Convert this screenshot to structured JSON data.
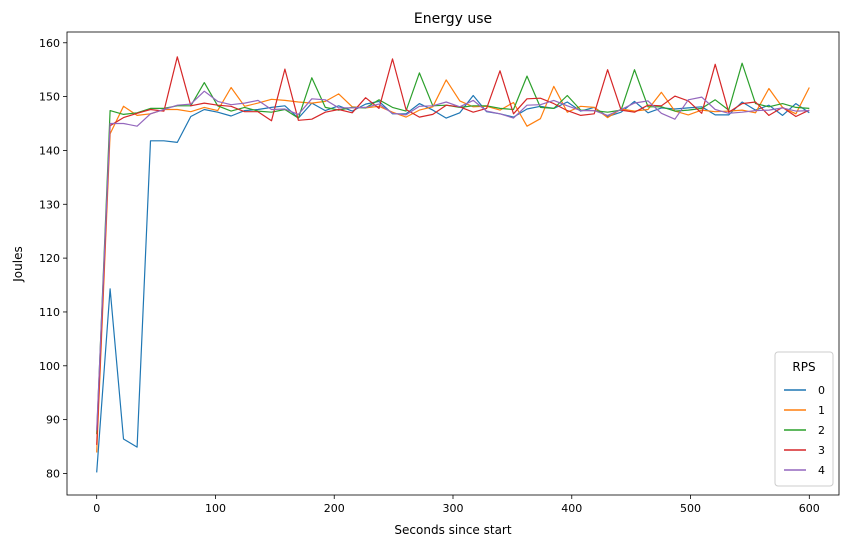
{
  "chart_data": {
    "type": "line",
    "title": "Energy use",
    "xlabel": "Seconds since start",
    "ylabel": "Joules",
    "xlim": [
      -25,
      625
    ],
    "ylim": [
      76,
      162
    ],
    "xticks": [
      0,
      100,
      200,
      300,
      400,
      500,
      600
    ],
    "yticks": [
      80,
      90,
      100,
      110,
      120,
      130,
      140,
      150,
      160
    ],
    "grid": false,
    "legend": {
      "title": "RPS",
      "placement": "lower-right"
    },
    "x": [
      0,
      11.3,
      22.6,
      34,
      45.3,
      56.6,
      67.9,
      79.2,
      90.6,
      101.9,
      113.2,
      124.5,
      135.8,
      147.2,
      158.5,
      169.8,
      181.1,
      192.5,
      203.8,
      215.1,
      226.4,
      237.7,
      249.1,
      260.4,
      271.7,
      283,
      294.3,
      305.7,
      317,
      328.3,
      339.6,
      350.9,
      362.3,
      373.6,
      384.9,
      396.2,
      407.5,
      418.9,
      430.2,
      441.5,
      452.8,
      464.2,
      475.5,
      486.8,
      498.1,
      509.4,
      520.8,
      532.1,
      543.4,
      554.7,
      566,
      577.4,
      588.7,
      600
    ],
    "series": [
      {
        "name": "0",
        "color": "#1f77b4",
        "values": [
          80.2,
          114.3,
          86.4,
          84.9,
          141.8,
          141.8,
          141.5,
          146.3,
          147.6,
          147.1,
          146.4,
          147.4,
          147.6,
          148.0,
          148.3,
          146.0,
          148.8,
          147.4,
          148.3,
          147.3,
          148.6,
          149.1,
          146.8,
          146.8,
          148.7,
          147.5,
          146.0,
          147.0,
          150.2,
          147.2,
          146.8,
          146.2,
          147.7,
          148.2,
          147.8,
          149.0,
          147.3,
          148.0,
          146.3,
          147.1,
          149.1,
          147.0,
          147.9,
          147.7,
          147.9,
          148.1,
          146.6,
          146.6,
          149.0,
          147.5,
          148.4,
          146.5,
          148.7,
          147.0
        ]
      },
      {
        "name": "1",
        "color": "#ff7f0e",
        "values": [
          83.9,
          143.1,
          148.2,
          146.5,
          146.8,
          147.6,
          147.6,
          147.2,
          148.0,
          147.4,
          151.7,
          148.2,
          148.8,
          149.5,
          149.3,
          149.0,
          148.8,
          149.1,
          150.5,
          148.1,
          147.9,
          148.2,
          147.1,
          146.2,
          147.5,
          148.1,
          153.1,
          149.2,
          148.1,
          148.2,
          147.5,
          148.9,
          144.5,
          145.9,
          151.9,
          147.1,
          148.2,
          148.0,
          146.1,
          147.7,
          147.3,
          147.6,
          150.8,
          147.3,
          146.6,
          147.5,
          147.2,
          147.3,
          147.5,
          147.0,
          151.5,
          148.0,
          146.8,
          151.7
        ]
      },
      {
        "name": "2",
        "color": "#2ca02c",
        "values": [
          87.3,
          147.4,
          146.7,
          147.0,
          147.8,
          147.8,
          148.3,
          148.3,
          152.6,
          148.3,
          147.3,
          148.0,
          147.3,
          147.1,
          147.6,
          146.0,
          153.5,
          148.0,
          147.5,
          148.0,
          147.9,
          149.4,
          148.0,
          147.3,
          154.4,
          148.3,
          148.4,
          148.0,
          148.3,
          148.3,
          147.8,
          147.6,
          153.8,
          148.0,
          147.8,
          150.2,
          147.5,
          147.4,
          147.1,
          147.5,
          155.0,
          148.1,
          148.1,
          147.3,
          147.5,
          147.8,
          149.4,
          147.5,
          156.2,
          148.7,
          148.1,
          148.7,
          148.0,
          147.8
        ]
      },
      {
        "name": "3",
        "color": "#d62728",
        "values": [
          85.3,
          144.6,
          146.1,
          146.9,
          147.6,
          147.3,
          157.4,
          148.3,
          148.8,
          148.4,
          148.2,
          147.2,
          147.2,
          145.5,
          155.1,
          145.6,
          145.8,
          147.1,
          147.6,
          147.0,
          149.8,
          147.8,
          157.0,
          147.6,
          146.2,
          146.7,
          148.4,
          148.1,
          147.1,
          147.8,
          154.8,
          146.8,
          149.6,
          149.7,
          148.7,
          147.4,
          146.5,
          146.8,
          155.0,
          147.5,
          147.1,
          148.4,
          148.3,
          150.1,
          149.2,
          146.9,
          156.0,
          147.1,
          148.7,
          149.0,
          146.5,
          148.0,
          146.3,
          147.5
        ]
      },
      {
        "name": "4",
        "color": "#9467bd",
        "values": [
          88.0,
          145.0,
          145.0,
          144.5,
          146.8,
          147.6,
          148.4,
          148.6,
          151.0,
          149.1,
          148.5,
          148.8,
          149.3,
          147.6,
          147.7,
          146.7,
          149.6,
          149.4,
          147.9,
          147.9,
          148.0,
          148.6,
          146.9,
          146.6,
          148.2,
          148.3,
          149.0,
          148.1,
          149.3,
          147.3,
          146.8,
          146.0,
          148.4,
          148.5,
          149.3,
          148.3,
          147.4,
          147.4,
          146.5,
          147.6,
          148.8,
          149.2,
          146.9,
          145.8,
          149.4,
          149.9,
          147.6,
          146.9,
          147.1,
          147.4,
          147.5,
          147.9,
          147.3,
          147.4
        ]
      }
    ]
  }
}
